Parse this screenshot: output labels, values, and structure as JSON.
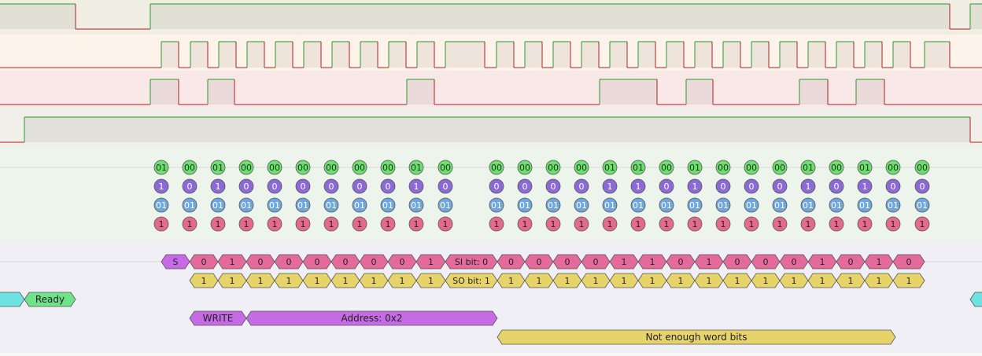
{
  "colors": {
    "lane1_bg": "#f0eee2",
    "lane2_bg": "#fdf3ea",
    "lane3_bg": "#f9e8e8",
    "lane4_bg": "#f1efe9",
    "bits_bg": "#edf4ec",
    "ann_bg": "#f1eff6",
    "wave_high": "#2a9a2a",
    "wave_low": "#b02020",
    "green_circle": "#6fdc6f",
    "purple_circle": "#8c6ad6",
    "blue_circle": "#6fa7dc",
    "red_circle": "#e36a8a",
    "pink_box": "#e36a9a",
    "yellow_box": "#e6d36a",
    "violet_box": "#c76ae6",
    "cyan_box": "#6fe3e3",
    "ready_box": "#6fe38a"
  },
  "bit_rows": {
    "row1": [
      "01",
      "00",
      "01",
      "00",
      "00",
      "00",
      "00",
      "00",
      "00",
      "01",
      "00",
      "00",
      "00",
      "00",
      "00",
      "01",
      "01",
      "00",
      "01",
      "00",
      "00",
      "00",
      "01",
      "00",
      "01",
      "00",
      "00"
    ],
    "row2": [
      "1",
      "0",
      "1",
      "0",
      "0",
      "0",
      "0",
      "0",
      "0",
      "1",
      "0",
      "0",
      "0",
      "0",
      "0",
      "1",
      "1",
      "0",
      "1",
      "0",
      "0",
      "0",
      "1",
      "0",
      "1",
      "0",
      "0"
    ],
    "row3": [
      "01",
      "01",
      "01",
      "01",
      "01",
      "01",
      "01",
      "01",
      "01",
      "01",
      "01",
      "01",
      "01",
      "01",
      "01",
      "01",
      "01",
      "01",
      "01",
      "01",
      "01",
      "01",
      "01",
      "01",
      "01",
      "01",
      "01"
    ],
    "row4": [
      "1",
      "1",
      "1",
      "1",
      "1",
      "1",
      "1",
      "1",
      "1",
      "1",
      "1",
      "1",
      "1",
      "1",
      "1",
      "1",
      "1",
      "1",
      "1",
      "1",
      "1",
      "1",
      "1",
      "1",
      "1",
      "1",
      "1"
    ]
  },
  "annotations": {
    "start_label": "S",
    "si_bits_a": [
      "0",
      "1",
      "0",
      "0",
      "0",
      "0",
      "0",
      "0",
      "1"
    ],
    "si_bit_label": "SI bit: 0",
    "si_bits_b": [
      "0",
      "0",
      "0",
      "0",
      "1",
      "1",
      "0",
      "1",
      "0",
      "0",
      "0",
      "1",
      "0",
      "1",
      "0"
    ],
    "so_bits_a": [
      "1",
      "1",
      "1",
      "1",
      "1",
      "1",
      "1",
      "1",
      "1"
    ],
    "so_bit_label": "SO bit: 1",
    "so_bits_b": [
      "1",
      "1",
      "1",
      "1",
      "1",
      "1",
      "1",
      "1",
      "1",
      "1",
      "1",
      "1",
      "1",
      "1",
      "1"
    ],
    "ready_label": "Ready",
    "write_label": "WRITE",
    "address_label": "Address: 0x2",
    "word_label": "Not enough word bits"
  }
}
